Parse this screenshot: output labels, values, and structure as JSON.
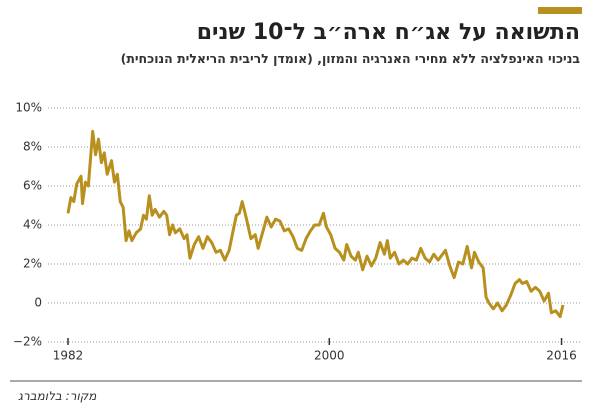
{
  "chart_data": {
    "type": "line",
    "title": "התשואה על אג״ח ארה״ב ל־10 שנים",
    "subtitle": "בניכוי האינפלציה ללא מחירי האנרגיה והמזון, (אומדן לריבית הריאלית הנוכחית)",
    "source": "מקור: בלומברג",
    "x": [
      1982.0,
      1982.2,
      1982.4,
      1982.6,
      1982.9,
      1983.0,
      1983.2,
      1983.4,
      1983.7,
      1983.9,
      1984.1,
      1984.3,
      1984.5,
      1984.7,
      1985.0,
      1985.2,
      1985.4,
      1985.6,
      1985.8,
      1986.0,
      1986.2,
      1986.4,
      1986.7,
      1987.0,
      1987.2,
      1987.4,
      1987.6,
      1987.8,
      1988.0,
      1988.3,
      1988.6,
      1988.8,
      1989.0,
      1989.2,
      1989.4,
      1989.7,
      1990.0,
      1990.2,
      1990.4,
      1990.7,
      1991.0,
      1991.3,
      1991.6,
      1991.9,
      1992.2,
      1992.5,
      1992.8,
      1993.1,
      1993.4,
      1993.6,
      1993.8,
      1994.0,
      1994.3,
      1994.6,
      1994.9,
      1995.1,
      1995.4,
      1995.7,
      1996.0,
      1996.3,
      1996.6,
      1996.9,
      1997.2,
      1997.5,
      1997.8,
      1998.1,
      1998.4,
      1998.7,
      1999.0,
      1999.3,
      1999.6,
      1999.8,
      2000.1,
      2000.4,
      2000.7,
      2001.0,
      2001.2,
      2001.5,
      2001.8,
      2002.0,
      2002.3,
      2002.6,
      2002.9,
      2003.2,
      2003.5,
      2003.8,
      2004.0,
      2004.2,
      2004.5,
      2004.8,
      2005.1,
      2005.4,
      2005.7,
      2006.0,
      2006.3,
      2006.6,
      2006.9,
      2007.2,
      2007.5,
      2008.0,
      2008.3,
      2008.6,
      2008.9,
      2009.2,
      2009.5,
      2009.8,
      2010.0,
      2010.3,
      2010.6,
      2010.8,
      2011.0,
      2011.3,
      2011.6,
      2011.9,
      2012.2,
      2012.5,
      2012.8,
      2013.1,
      2013.3,
      2013.6,
      2013.9,
      2014.2,
      2014.5,
      2014.8,
      2015.1,
      2015.3,
      2015.6,
      2015.9,
      2016.1
    ],
    "series": [
      {
        "color": "#b8901e",
        "values": [
          4.6,
          5.4,
          5.2,
          6.1,
          6.5,
          5.1,
          6.2,
          6.0,
          8.8,
          7.6,
          8.4,
          7.2,
          7.7,
          6.6,
          7.3,
          6.2,
          6.6,
          5.2,
          4.9,
          3.2,
          3.7,
          3.2,
          3.6,
          3.8,
          4.5,
          4.3,
          5.5,
          4.5,
          4.8,
          4.4,
          4.7,
          4.5,
          3.5,
          4.0,
          3.6,
          3.8,
          3.3,
          3.5,
          2.3,
          3.0,
          3.4,
          2.8,
          3.4,
          3.1,
          2.6,
          2.7,
          2.2,
          2.7,
          3.8,
          4.5,
          4.6,
          5.2,
          4.3,
          3.3,
          3.5,
          2.8,
          3.6,
          4.4,
          3.9,
          4.3,
          4.2,
          3.7,
          3.8,
          3.4,
          2.8,
          2.7,
          3.3,
          3.7,
          4.0,
          4.0,
          4.6,
          3.9,
          3.5,
          2.8,
          2.6,
          2.2,
          3.0,
          2.4,
          2.2,
          2.6,
          1.7,
          2.4,
          1.9,
          2.3,
          3.1,
          2.5,
          3.2,
          2.3,
          2.6,
          2.0,
          2.2,
          2.0,
          2.3,
          2.2,
          2.8,
          2.3,
          2.1,
          2.5,
          2.2,
          2.7,
          1.9,
          1.3,
          2.1,
          2.0,
          2.9,
          1.8,
          2.6,
          2.1,
          1.8,
          0.3,
          0.0,
          -0.3,
          0.0,
          -0.4,
          -0.1,
          0.4,
          1.0,
          1.2,
          1.0,
          1.1,
          0.6,
          0.8,
          0.6,
          0.1,
          0.5,
          -0.5,
          -0.4,
          -0.7,
          -0.1
        ]
      }
    ],
    "xlim": [
      1982,
      2016.1
    ],
    "xticks": [
      1982,
      2000,
      2016
    ],
    "ylim": [
      -2,
      10
    ],
    "yticks": [
      {
        "value": 10,
        "label": "10%"
      },
      {
        "value": 8,
        "label": "8%"
      },
      {
        "value": 6,
        "label": "6%"
      },
      {
        "value": 4,
        "label": "4%"
      },
      {
        "value": 2,
        "label": "2%"
      },
      0,
      {
        "value": -2,
        "label": "−2%"
      }
    ],
    "grid": true
  }
}
